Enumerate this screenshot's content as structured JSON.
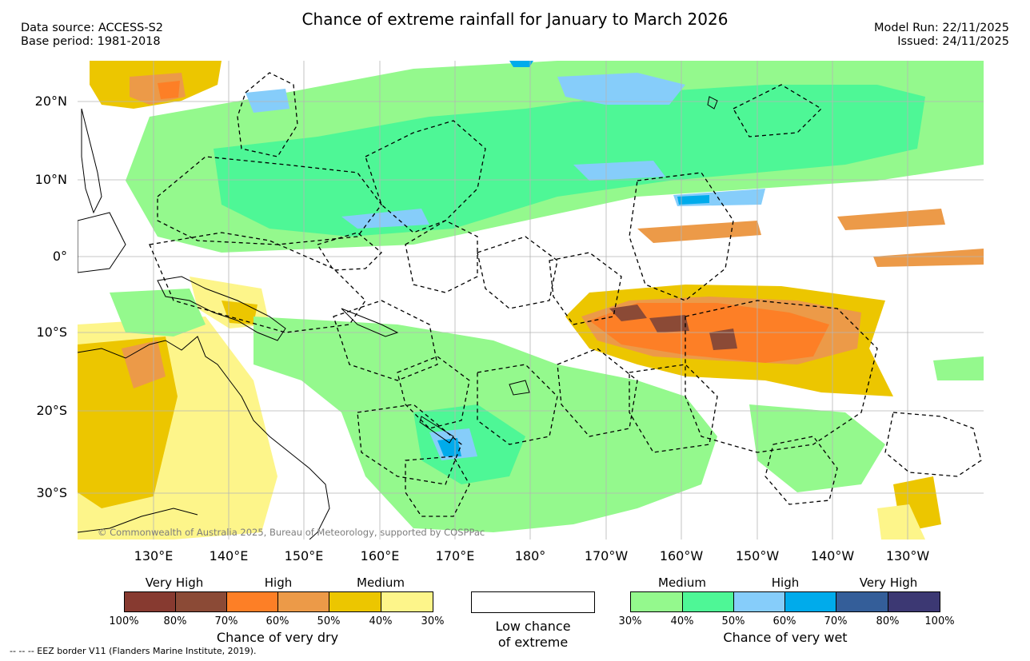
{
  "title": "Chance of extreme rainfall for January to March 2026",
  "header_left": {
    "data_source": "Data source: ACCESS-S2",
    "base_period": "Base period: 1981-2018"
  },
  "header_right": {
    "model_run": "Model Run: 22/11/2025",
    "issued": "Issued: 24/11/2025"
  },
  "map": {
    "lat_labels": [
      "20°N",
      "10°N",
      "0°",
      "10°S",
      "20°S",
      "30°S"
    ],
    "lon_labels": [
      "130°E",
      "140°E",
      "150°E",
      "160°E",
      "170°E",
      "180°",
      "170°W",
      "160°W",
      "150°W",
      "140°W",
      "130°W"
    ],
    "copyright": "© Commonwealth of Australia 2025, Bureau of Meteorology, supported by COSPPac",
    "colors": {
      "dry_30_40": "#fdf58a",
      "dry_40_50": "#ecc600",
      "dry_50_60": "#ec9a48",
      "dry_60_70": "#fd7f26",
      "dry_70_80": "#8b4a36",
      "dry_80_100": "#873a30",
      "wet_30_40": "#94f98d",
      "wet_40_50": "#4ef796",
      "wet_50_60": "#86cdfa",
      "wet_60_70": "#00abeb",
      "wet_70_80": "#345e99",
      "wet_80_100": "#3c3873"
    }
  },
  "legend": {
    "dry": {
      "labels": [
        "Very High",
        "High",
        "Medium"
      ],
      "ticks": [
        "100%",
        "80%",
        "70%",
        "60%",
        "50%",
        "40%",
        "30%"
      ],
      "caption": "Chance of very dry",
      "swatches": [
        "#873a30",
        "#8b4a36",
        "#fd7f26",
        "#ec9a48",
        "#ecc600",
        "#fdf58a"
      ]
    },
    "low": {
      "line1": "Low chance",
      "line2": "of extreme"
    },
    "wet": {
      "labels": [
        "Medium",
        "High",
        "Very High"
      ],
      "ticks": [
        "30%",
        "40%",
        "50%",
        "60%",
        "70%",
        "80%",
        "100%"
      ],
      "caption": "Chance of very wet",
      "swatches": [
        "#94f98d",
        "#4ef796",
        "#86cdfa",
        "#00abeb",
        "#345e99",
        "#3c3873"
      ]
    }
  },
  "footnote": "--  --  -- EEZ border V11 (Flanders Marine Institute, 2019)."
}
